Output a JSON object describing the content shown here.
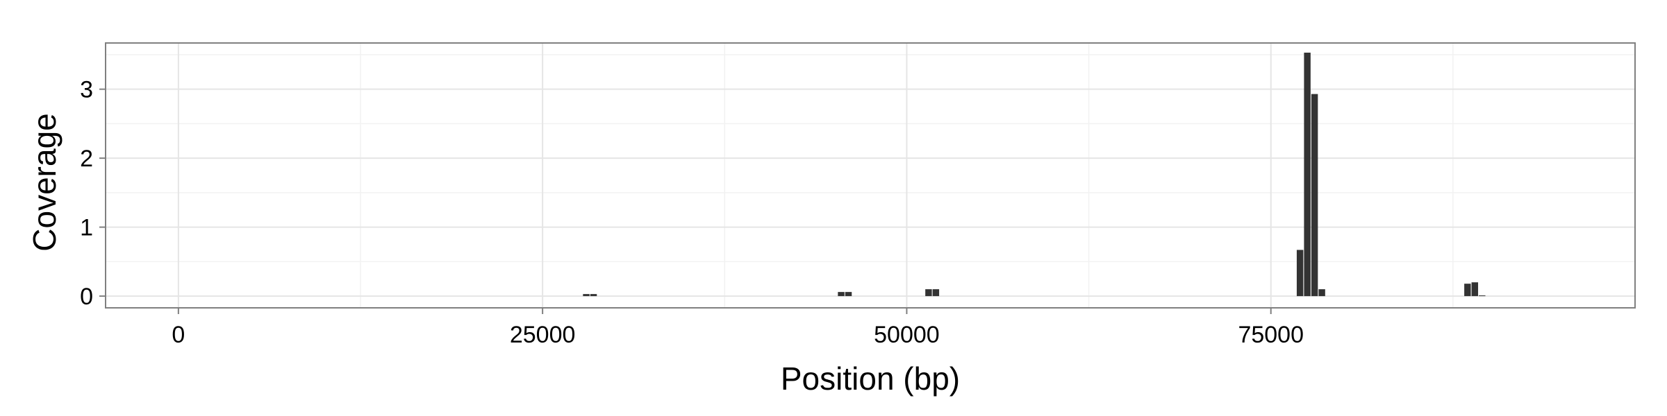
{
  "chart_data": {
    "type": "bar",
    "title": "",
    "xlabel": "Position (bp)",
    "ylabel": "Coverage",
    "xlim": [
      -5000,
      100000
    ],
    "ylim": [
      -0.17,
      3.67
    ],
    "xticks": [
      0,
      25000,
      50000,
      75000
    ],
    "xtick_labels": [
      "0",
      "25000",
      "50000",
      "75000"
    ],
    "yticks": [
      0,
      1,
      2,
      3
    ],
    "ytick_labels": [
      "0",
      "1",
      "2",
      "3"
    ],
    "grid": true,
    "bin_width": 500,
    "bar_color": "#333333",
    "points": [
      {
        "x": 28000,
        "y": 0.03
      },
      {
        "x": 28500,
        "y": 0.03
      },
      {
        "x": 45500,
        "y": 0.06
      },
      {
        "x": 46000,
        "y": 0.06
      },
      {
        "x": 51500,
        "y": 0.1
      },
      {
        "x": 52000,
        "y": 0.1
      },
      {
        "x": 77000,
        "y": 0.67
      },
      {
        "x": 77500,
        "y": 3.53
      },
      {
        "x": 78000,
        "y": 2.93
      },
      {
        "x": 78500,
        "y": 0.1
      },
      {
        "x": 88500,
        "y": 0.18
      },
      {
        "x": 89000,
        "y": 0.2
      },
      {
        "x": 89500,
        "y": 0.01
      }
    ]
  }
}
